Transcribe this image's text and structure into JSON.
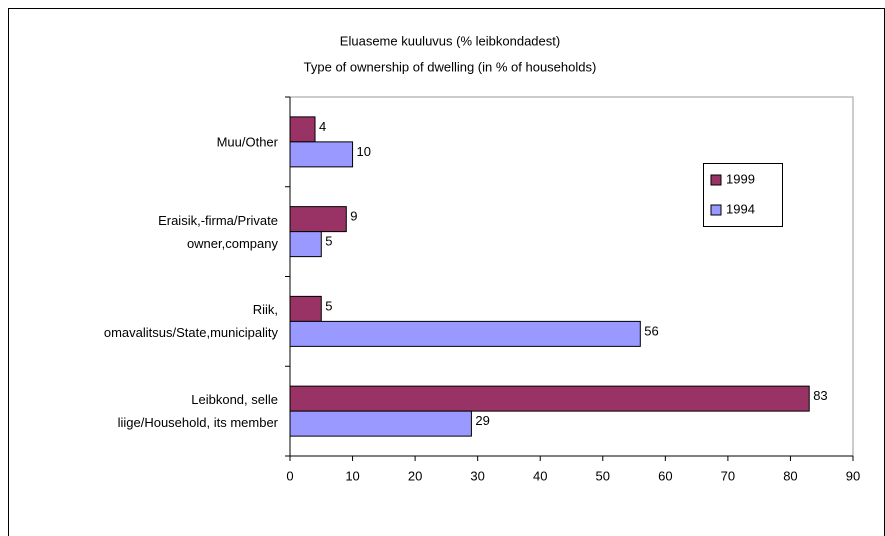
{
  "chart_data": {
    "type": "bar",
    "orientation": "horizontal",
    "title": "Eluaseme kuuluvus (% leibkondadest)",
    "subtitle": "Type of ownership of dwelling (in % of households)",
    "categories": [
      "Muu/Other",
      "Eraisik,-firma/Private\nowner,company",
      "Riik,\nomavalitsus/State,municipality",
      "Leibkond, selle\nliige/Household, its member"
    ],
    "series": [
      {
        "name": "1999",
        "color": "#993366",
        "values": [
          4,
          9,
          5,
          83
        ]
      },
      {
        "name": "1994",
        "color": "#9999ff",
        "values": [
          10,
          5,
          56,
          29
        ]
      }
    ],
    "xlim": [
      0,
      90
    ],
    "xticks": [
      0,
      10,
      20,
      30,
      40,
      50,
      60,
      70,
      80,
      90
    ],
    "legend": "right",
    "data_labels": true
  }
}
